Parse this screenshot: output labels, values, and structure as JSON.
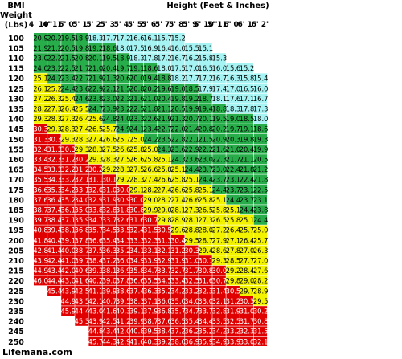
{
  "header": {
    "bmi_label": "BMI",
    "weight_label": "Weight",
    "weight_unit": "(Lbs)",
    "height_title": "Height (Feet & Inches)"
  },
  "colors": {
    "cyan": "#a6f3f3",
    "green": "#27ae4a",
    "yellow": "#f3f300",
    "red": "#e00000",
    "header_text": "#000000"
  },
  "chart_data": {
    "type": "table",
    "title": "Height (Feet & Inches)",
    "heights": [
      "4' 10\"",
      "4' 11\"",
      "5' 0\"",
      "5' 1\"",
      "5' 2\"",
      "5' 3\"",
      "5' 4\"",
      "5' 5\"",
      "5' 6\"",
      "5' 7\"",
      "5' 8\"",
      "5' 9\"",
      "5' 10\"",
      "5' 11\"",
      "6' 0\"",
      "6' 1\"",
      "6' 2\""
    ],
    "heights_inches": [
      58,
      59,
      60,
      61,
      62,
      63,
      64,
      65,
      66,
      67,
      68,
      69,
      70,
      71,
      72,
      73,
      74
    ],
    "weights": [
      100,
      105,
      110,
      115,
      120,
      125,
      130,
      135,
      140,
      145,
      150,
      155,
      160,
      165,
      170,
      175,
      180,
      185,
      190,
      195,
      200,
      205,
      210,
      215,
      220,
      225,
      230,
      235,
      240,
      245,
      250
    ],
    "cutoffs": {
      "cyan_below": 18.5,
      "green_below": 25,
      "yellow_below": 30
    },
    "footer": "Lifemana.com"
  }
}
